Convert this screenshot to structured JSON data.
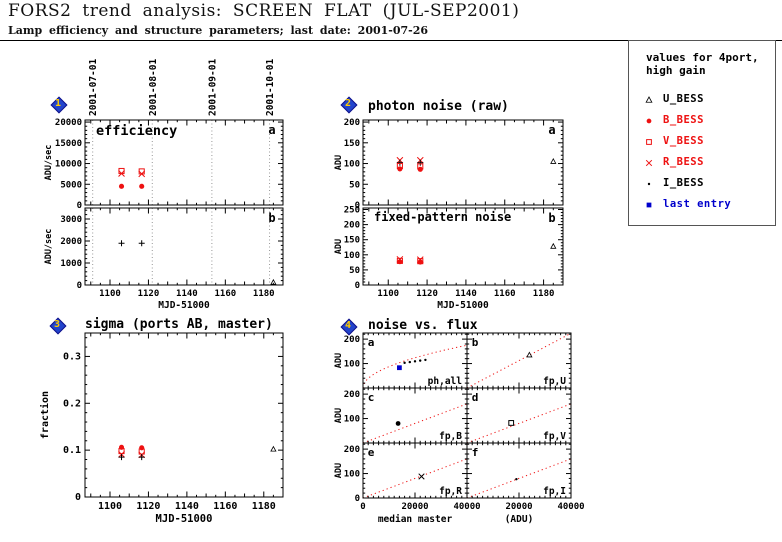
{
  "colors": {
    "red": "#ee1111",
    "blue": "#0000cc",
    "black": "#000000",
    "gray_line": "#999999",
    "icon_bg": "#2244cc",
    "icon_num": "#ffcc00"
  },
  "header": {
    "title": "FORS2 trend analysis: SCREEN FLAT (JUL-SEP2001)",
    "subtitle": "Lamp efficiency and structure parameters; last date: 2001-07-26"
  },
  "legend": {
    "title_line1": "values for 4port,",
    "title_line2": "high gain",
    "entries": [
      {
        "marker": "triangle-open",
        "color": "#000000",
        "label": "U_BESS"
      },
      {
        "marker": "circle",
        "color": "#ee1111",
        "label": "B_BESS"
      },
      {
        "marker": "square-open",
        "color": "#ee1111",
        "label": "V_BESS"
      },
      {
        "marker": "x",
        "color": "#ee1111",
        "label": "R_BESS"
      },
      {
        "marker": "dot",
        "color": "#000000",
        "label": "I_BESS"
      },
      {
        "marker": "square",
        "color": "#0000cc",
        "label": "last entry"
      }
    ]
  },
  "chart_data": [
    {
      "icon": "1",
      "type": "scatter",
      "xlabel": "MJD-51000",
      "xrange": [
        1087,
        1190
      ],
      "xticks": [
        1100,
        1120,
        1140,
        1160,
        1180
      ],
      "date_lines": {
        "positions": [
          1091,
          1122,
          1153,
          1183
        ],
        "labels": [
          "2001-07-01",
          "2001-08-01",
          "2001-09-01",
          "2001-10-01"
        ]
      },
      "panels": [
        {
          "tag": "a",
          "inner_title": "efficiency",
          "ylabel": "ADU/sec",
          "yrange": [
            0,
            20500
          ],
          "yticks": [
            0,
            5000,
            10000,
            15000,
            20000
          ],
          "yminor": 1000,
          "series": [
            {
              "name": "V_BESS",
              "marker": "square-open",
              "color": "#ee1111",
              "points": [
                [
                  1106,
                  8200
                ],
                [
                  1116.5,
                  8100
                ]
              ]
            },
            {
              "name": "R_BESS",
              "marker": "x",
              "color": "#ee1111",
              "points": [
                [
                  1106,
                  7600
                ],
                [
                  1116.5,
                  7500
                ]
              ]
            },
            {
              "name": "B_BESS",
              "marker": "circle",
              "color": "#ee1111",
              "points": [
                [
                  1106,
                  4500
                ],
                [
                  1116.5,
                  4500
                ]
              ]
            }
          ]
        },
        {
          "tag": "b",
          "ylabel": "ADU/sec",
          "yrange": [
            0,
            3500
          ],
          "yticks": [
            0,
            1000,
            2000,
            3000
          ],
          "yminor": 200,
          "series": [
            {
              "name": "all_ports",
              "marker": "plus",
              "color": "#000000",
              "points": [
                [
                  1106,
                  1900
                ],
                [
                  1116.5,
                  1900
                ]
              ]
            },
            {
              "name": "U_BESS",
              "marker": "triangle-open",
              "color": "#000000",
              "points": [
                [
                  1185,
                  120
                ]
              ]
            }
          ]
        }
      ]
    },
    {
      "icon": "2",
      "type": "scatter",
      "title": "photon noise (raw)",
      "xlabel": "MJD-51000",
      "xrange": [
        1087,
        1190
      ],
      "xticks": [
        1100,
        1120,
        1140,
        1160,
        1180
      ],
      "panels": [
        {
          "tag": "a",
          "ylabel": "ADU",
          "yrange": [
            0,
            205
          ],
          "yticks": [
            0,
            50,
            100,
            150,
            200
          ],
          "yminor": 10,
          "series": [
            {
              "name": "R_BESS",
              "marker": "x",
              "color": "#ee1111",
              "points": [
                [
                  1106,
                  108
                ],
                [
                  1116.5,
                  108
                ]
              ]
            },
            {
              "name": "all_ports",
              "marker": "plus",
              "color": "#000000",
              "points": [
                [
                  1106,
                  102
                ],
                [
                  1116.5,
                  102
                ]
              ]
            },
            {
              "name": "V_BESS",
              "marker": "square-open",
              "color": "#ee1111",
              "points": [
                [
                  1106,
                  94
                ],
                [
                  1116.5,
                  93
                ]
              ]
            },
            {
              "name": "B_BESS",
              "marker": "circle",
              "color": "#ee1111",
              "points": [
                [
                  1106,
                  87
                ],
                [
                  1116.5,
                  86
                ]
              ]
            },
            {
              "name": "U_BESS",
              "marker": "triangle-open",
              "color": "#000000",
              "points": [
                [
                  1185,
                  105
                ]
              ]
            }
          ]
        },
        {
          "tag": "b",
          "inner_title": "fixed-pattern noise",
          "ylabel": "ADU",
          "yrange": [
            0,
            255
          ],
          "yticks": [
            0,
            50,
            100,
            150,
            200,
            250
          ],
          "yminor": 10,
          "series": [
            {
              "name": "R_BESS",
              "marker": "x",
              "color": "#ee1111",
              "points": [
                [
                  1106,
                  85
                ],
                [
                  1116.5,
                  84
                ]
              ]
            },
            {
              "name": "V_BESS",
              "marker": "square-open",
              "color": "#ee1111",
              "points": [
                [
                  1106,
                  80
                ],
                [
                  1116.5,
                  79
                ]
              ]
            },
            {
              "name": "B_BESS",
              "marker": "circle",
              "color": "#ee1111",
              "points": [
                [
                  1106,
                  77
                ],
                [
                  1116.5,
                  76
                ]
              ]
            },
            {
              "name": "U_BESS",
              "marker": "triangle-open",
              "color": "#000000",
              "points": [
                [
                  1185,
                  128
                ]
              ]
            }
          ]
        }
      ]
    },
    {
      "icon": "3",
      "type": "scatter",
      "title": "sigma (ports AB, master)",
      "xlabel": "MJD-51000",
      "xrange": [
        1087,
        1190
      ],
      "xticks": [
        1100,
        1120,
        1140,
        1160,
        1180
      ],
      "panels": [
        {
          "ylabel": "fraction",
          "yrange": [
            0,
            0.35
          ],
          "yticks": [
            0,
            0.1,
            0.2,
            0.3
          ],
          "yminor": 0.02,
          "series": [
            {
              "name": "B_BESS",
              "marker": "circle",
              "color": "#ee1111",
              "points": [
                [
                  1106,
                  0.106
                ],
                [
                  1116.5,
                  0.105
                ]
              ]
            },
            {
              "name": "V_BESS",
              "marker": "square-open",
              "color": "#ee1111",
              "points": [
                [
                  1106,
                  0.098
                ],
                [
                  1116.5,
                  0.097
                ]
              ]
            },
            {
              "name": "R_BESS",
              "marker": "x",
              "color": "#ee1111",
              "points": [
                [
                  1106,
                  0.091
                ],
                [
                  1116.5,
                  0.09
                ]
              ]
            },
            {
              "name": "all_ports",
              "marker": "plus",
              "color": "#000000",
              "points": [
                [
                  1106,
                  0.085
                ],
                [
                  1116.5,
                  0.085
                ]
              ]
            },
            {
              "name": "U_BESS",
              "marker": "triangle-open",
              "color": "#000000",
              "points": [
                [
                  1185,
                  0.102
                ]
              ]
            }
          ]
        }
      ]
    },
    {
      "icon": "4",
      "type": "scatter-grid",
      "title": "noise vs. flux",
      "xrange": [
        0,
        40000
      ],
      "xticks": [
        0,
        20000,
        40000
      ],
      "xminor": 2000,
      "col_xlabels": [
        "median master",
        "(ADU)"
      ],
      "row_ylabel": "ADU",
      "yrange": [
        0,
        225
      ],
      "yticks": [
        100,
        200
      ],
      "yminor": 20,
      "y_zero_label": "0",
      "panels": [
        {
          "tag": "a",
          "corner_label": "ph,all",
          "fit_line": {
            "type": "sqrt",
            "coef": 0.875
          },
          "series": [
            {
              "name": "trend",
              "marker": "dot",
              "color": "#000000",
              "points": [
                [
                  16000,
                  103
                ],
                [
                  18000,
                  106
                ],
                [
                  20000,
                  109
                ],
                [
                  22000,
                  112
                ],
                [
                  24000,
                  115
                ]
              ]
            },
            {
              "name": "last_entry",
              "marker": "square",
              "color": "#0000cc",
              "points": [
                [
                  14000,
                  83
                ]
              ]
            }
          ]
        },
        {
          "tag": "b",
          "corner_label": "fp,U",
          "fit_line": {
            "type": "linear",
            "slope": 0.0056
          },
          "series": [
            {
              "name": "U_BESS",
              "marker": "triangle-open",
              "color": "#000000",
              "points": [
                [
                  24000,
                  135
                ]
              ]
            }
          ]
        },
        {
          "tag": "c",
          "corner_label": "fp,B",
          "fit_line": {
            "type": "linear",
            "slope": 0.004
          },
          "series": [
            {
              "name": "B_BESS",
              "marker": "circle",
              "color": "#000000",
              "points": [
                [
                  13500,
                  80
                ]
              ]
            }
          ]
        },
        {
          "tag": "d",
          "corner_label": "fp,V",
          "fit_line": {
            "type": "linear",
            "slope": 0.004
          },
          "series": [
            {
              "name": "V_BESS",
              "marker": "square-open",
              "color": "#000000",
              "points": [
                [
                  17000,
                  82
                ]
              ]
            }
          ]
        },
        {
          "tag": "e",
          "corner_label": "fp,R",
          "fit_line": {
            "type": "linear",
            "slope": 0.004
          },
          "series": [
            {
              "name": "R_BESS",
              "marker": "x",
              "color": "#000000",
              "points": [
                [
                  22500,
                  88
                ]
              ]
            }
          ]
        },
        {
          "tag": "f",
          "corner_label": "fp,I",
          "fit_line": {
            "type": "linear",
            "slope": 0.004
          },
          "series": [
            {
              "name": "I_BESS",
              "marker": "dot",
              "color": "#000000",
              "points": [
                [
                  19000,
                  77
                ]
              ]
            }
          ]
        }
      ]
    }
  ]
}
